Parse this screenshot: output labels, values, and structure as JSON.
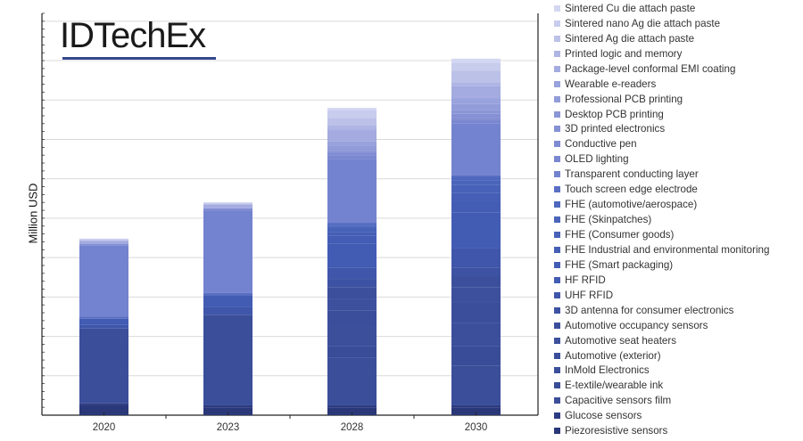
{
  "logo_text": "IDTechEx",
  "chart_data": {
    "type": "bar",
    "stacked": true,
    "title": "",
    "xlabel": "",
    "ylabel": "Million USD",
    "ylim": [
      0,
      10.2
    ],
    "y_tick_labels_shown": false,
    "grid": true,
    "legend_position": "right",
    "categories": [
      "2020",
      "2023",
      "2028",
      "2030"
    ],
    "series": [
      {
        "name": "Piezoresistive sensors",
        "color": "#2a3779",
        "values": [
          0.25,
          0.2,
          0.2,
          0.2
        ]
      },
      {
        "name": "Glucose sensors",
        "color": "#2d3b82",
        "values": [
          0.05,
          0.05,
          0.05,
          0.05
        ]
      },
      {
        "name": "Capacitive sensors film",
        "color": "#3a4e9a",
        "values": [
          1.9,
          2.3,
          1.2,
          1.0
        ]
      },
      {
        "name": "E-textile/wearable ink",
        "color": "#394c98",
        "values": [
          0,
          0,
          0.3,
          0.5
        ]
      },
      {
        "name": "InMold Electronics",
        "color": "#3b4f9b",
        "values": [
          0,
          0,
          0.5,
          0.6
        ]
      },
      {
        "name": "Automotive (exterior)",
        "color": "#3a4e9b",
        "values": [
          0,
          0,
          0.4,
          0.5
        ]
      },
      {
        "name": "Automotive seat heaters",
        "color": "#3c509d",
        "values": [
          0,
          0,
          0.3,
          0.4
        ]
      },
      {
        "name": "Automotive occupancy sensors",
        "color": "#3b4f9c",
        "values": [
          0,
          0,
          0.3,
          0.3
        ]
      },
      {
        "name": "3D antenna for consumer electronics",
        "color": "#3d52a2",
        "values": [
          0,
          0,
          0.2,
          0.2
        ]
      },
      {
        "name": "UHF RFID",
        "color": "#3f56aa",
        "values": [
          0.1,
          0.2,
          0.3,
          0.5
        ]
      },
      {
        "name": "HF RFID",
        "color": "#425cb4",
        "values": [
          0.15,
          0.3,
          0.6,
          0.9
        ]
      },
      {
        "name": "FHE (Smart packaging)",
        "color": "#435db5",
        "values": [
          0,
          0,
          0.2,
          0.3
        ]
      },
      {
        "name": "FHE Industrial and environmental monitoring",
        "color": "#455fb6",
        "values": [
          0,
          0,
          0.1,
          0.2
        ]
      },
      {
        "name": "FHE (Consumer goods)",
        "color": "#4762b8",
        "values": [
          0,
          0,
          0.1,
          0.2
        ]
      },
      {
        "name": "FHE (Skinpatches)",
        "color": "#4a65ba",
        "values": [
          0,
          0,
          0.05,
          0.1
        ]
      },
      {
        "name": "FHE (automotive/aerospace)",
        "color": "#4d68bd",
        "values": [
          0,
          0,
          0.05,
          0.1
        ]
      },
      {
        "name": "Touch screen edge electrode",
        "color": "#5a6fc3",
        "values": [
          0.05,
          0.05,
          0.05,
          0.05
        ]
      },
      {
        "name": "Transparent conducting  layer",
        "color": "#7483cf",
        "values": [
          1.8,
          2.1,
          1.6,
          1.3
        ]
      },
      {
        "name": "OLED lighting",
        "color": "#7a87d0",
        "values": [
          0,
          0,
          0.1,
          0.1
        ]
      },
      {
        "name": "Conductive pen",
        "color": "#7f8bd2",
        "values": [
          0.05,
          0.05,
          0.05,
          0.05
        ]
      },
      {
        "name": "3D printed electronics",
        "color": "#8591d4",
        "values": [
          0,
          0,
          0.05,
          0.1
        ]
      },
      {
        "name": "Desktop PCB printing",
        "color": "#8b96d6",
        "values": [
          0,
          0,
          0.05,
          0.1
        ]
      },
      {
        "name": "Professional PCB printing",
        "color": "#929cd9",
        "values": [
          0,
          0,
          0.1,
          0.15
        ]
      },
      {
        "name": "Wearable e-readers",
        "color": "#98a2dc",
        "values": [
          0,
          0,
          0.1,
          0.15
        ]
      },
      {
        "name": "Package-level conformal EMI coating",
        "color": "#a3abe0",
        "values": [
          0.08,
          0.1,
          0.3,
          0.3
        ]
      },
      {
        "name": "Printed logic and memory",
        "color": "#aeb5e4",
        "values": [
          0,
          0,
          0.1,
          0.1
        ]
      },
      {
        "name": "Sintered Ag die attach paste",
        "color": "#bcc1e8",
        "values": [
          0,
          0,
          0.2,
          0.3
        ]
      },
      {
        "name": "Sintered nano Ag die attach paste",
        "color": "#c8cced",
        "values": [
          0.05,
          0.05,
          0.2,
          0.2
        ]
      },
      {
        "name": "Sintered Cu die attach paste",
        "color": "#d4d7f1",
        "values": [
          0,
          0,
          0.05,
          0.1
        ]
      }
    ]
  }
}
